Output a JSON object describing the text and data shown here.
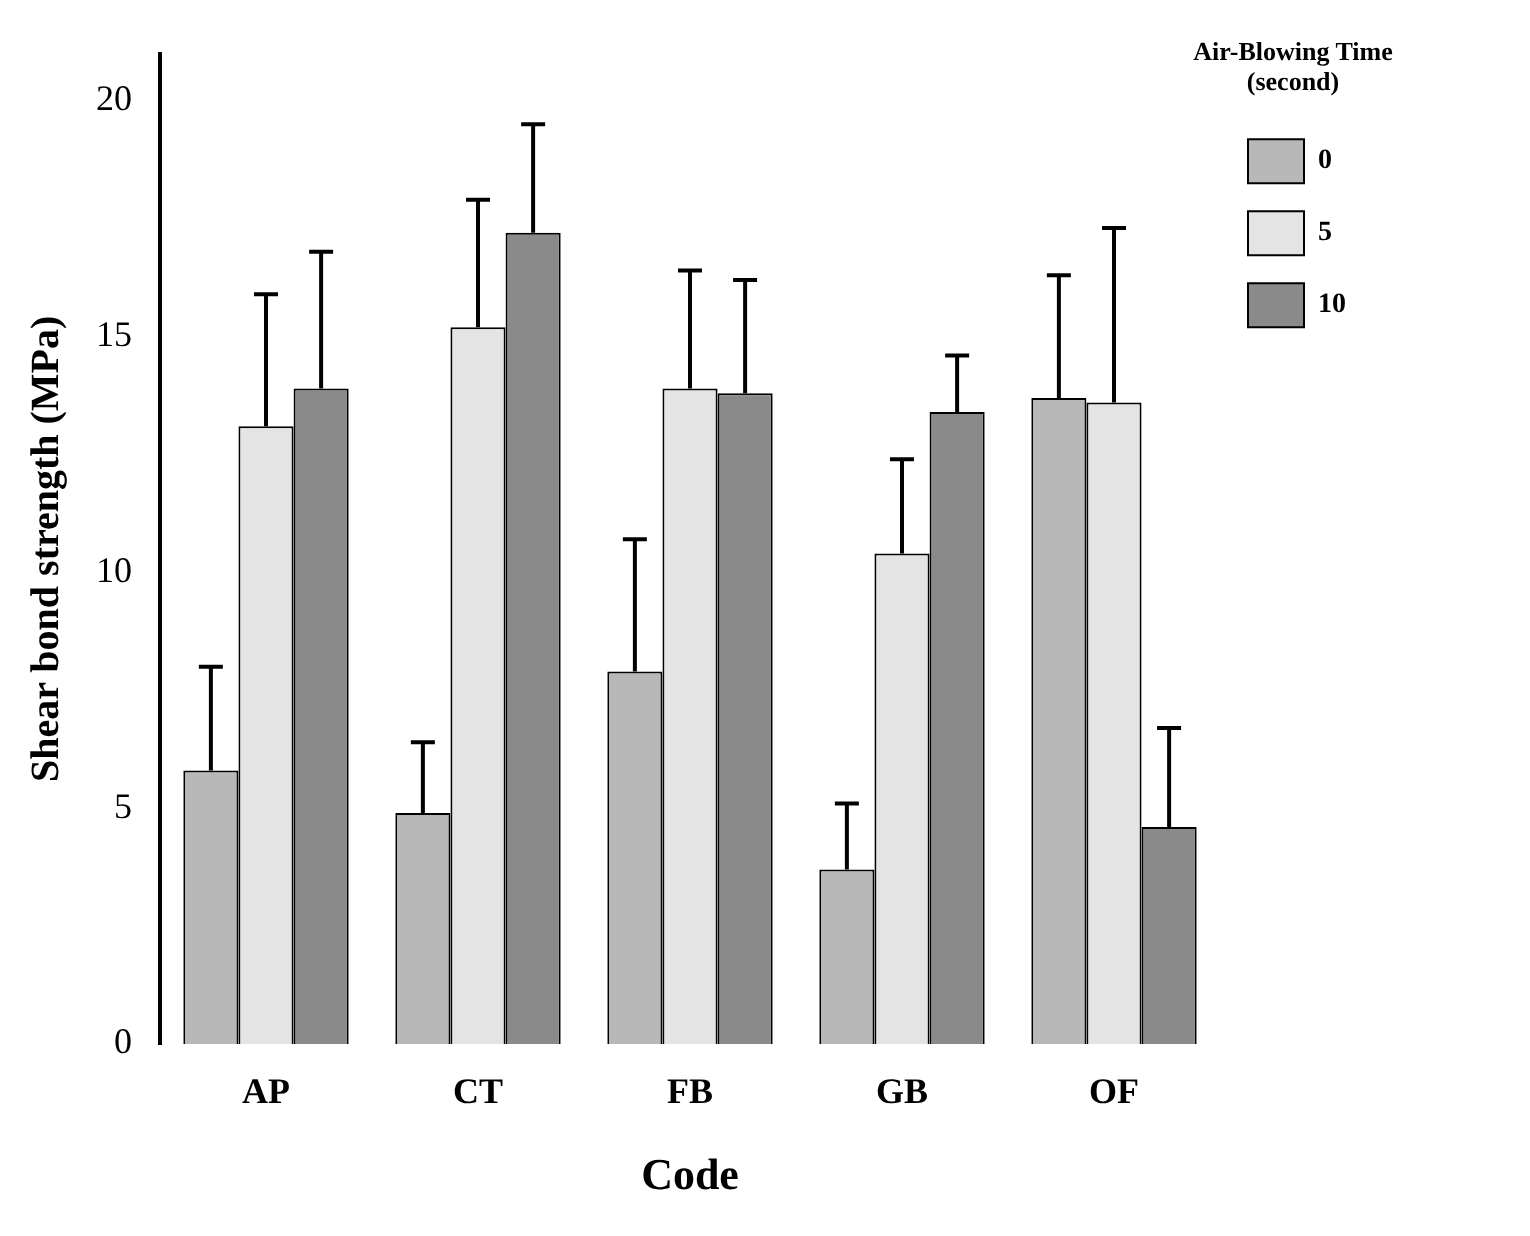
{
  "chart_data": {
    "type": "bar",
    "xlabel": "Code",
    "ylabel": "Shear bond strength (MPa)",
    "legend_title": "Air-Blowing Time (second)",
    "categories": [
      "AP",
      "CT",
      "FB",
      "GB",
      "OF"
    ],
    "series": [
      {
        "name": "0",
        "color": "#b8b8b8",
        "values": [
          5.8,
          4.9,
          7.9,
          3.7,
          13.7
        ],
        "errors": [
          [
            5.8,
            8.0
          ],
          [
            4.9,
            6.4
          ],
          [
            7.9,
            10.7
          ],
          [
            3.7,
            5.1
          ],
          [
            13.7,
            16.3
          ]
        ]
      },
      {
        "name": "5",
        "color": "#e4e4e4",
        "values": [
          13.1,
          15.2,
          13.9,
          10.4,
          13.6
        ],
        "errors": [
          [
            13.1,
            15.9
          ],
          [
            15.2,
            17.9
          ],
          [
            13.9,
            16.4
          ],
          [
            10.4,
            12.4
          ],
          [
            13.6,
            17.3
          ]
        ]
      },
      {
        "name": "10",
        "color": "#8a8a8a",
        "values": [
          13.9,
          17.2,
          13.8,
          13.4,
          4.6
        ],
        "errors": [
          [
            13.9,
            16.8
          ],
          [
            17.2,
            19.5
          ],
          [
            13.8,
            16.2
          ],
          [
            13.4,
            14.6
          ],
          [
            4.6,
            6.7
          ]
        ]
      }
    ],
    "ylim": [
      0,
      21
    ],
    "yticks": [
      0,
      5,
      10,
      15,
      20
    ],
    "grid": false,
    "legend": "top right"
  }
}
